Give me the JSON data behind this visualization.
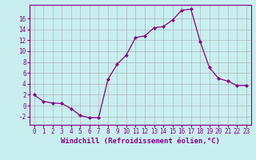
{
  "x": [
    0,
    1,
    2,
    3,
    4,
    5,
    6,
    7,
    8,
    9,
    10,
    11,
    12,
    13,
    14,
    15,
    16,
    17,
    18,
    19,
    20,
    21,
    22,
    23
  ],
  "y": [
    2,
    0.8,
    0.5,
    0.4,
    -0.5,
    -1.8,
    -2.2,
    -2.2,
    4.8,
    7.6,
    9.3,
    12.5,
    12.8,
    14.3,
    14.5,
    15.7,
    17.5,
    17.7,
    11.8,
    7.0,
    5.0,
    4.5,
    3.7,
    3.7
  ],
  "line_color": "#880088",
  "marker": "D",
  "marker_size": 2,
  "bg_color": "#c8eef0",
  "grid_color": "#aaaaaa",
  "xlabel": "Windchill (Refroidissement éolien,°C)",
  "xlabel_fontsize": 6.5,
  "tick_fontsize": 5.5,
  "ylim": [
    -3.5,
    18.5
  ],
  "yticks": [
    -2,
    0,
    2,
    4,
    6,
    8,
    10,
    12,
    14,
    16
  ],
  "xlim": [
    -0.5,
    23.5
  ]
}
